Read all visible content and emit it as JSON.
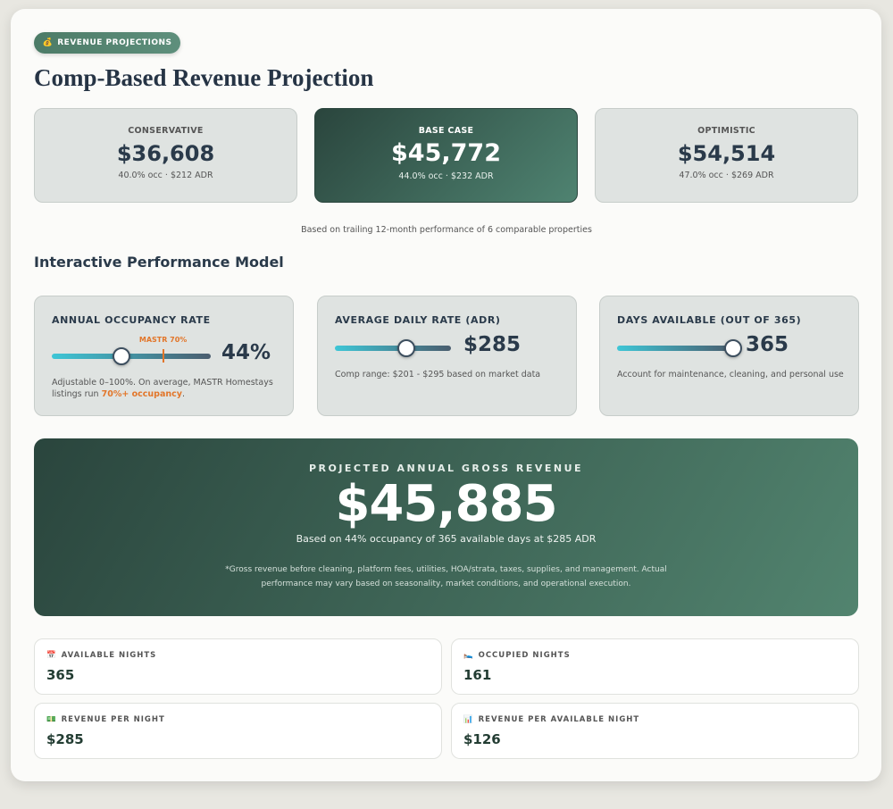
{
  "header": {
    "badge_icon": "💰",
    "badge": "REVENUE PROJECTIONS",
    "title": "Comp-Based Revenue Projection"
  },
  "scenarios": [
    {
      "label": "CONSERVATIVE",
      "value": "$36,608",
      "detail": "40.0% occ · $212 ADR"
    },
    {
      "label": "BASE CASE",
      "value": "$45,772",
      "detail": "44.0% occ · $232 ADR"
    },
    {
      "label": "OPTIMISTIC",
      "value": "$54,514",
      "detail": "47.0% occ · $269 ADR"
    }
  ],
  "scenario_note": "Based on trailing 12-month performance of 6 comparable properties",
  "model_title": "Interactive Performance Model",
  "sliders": [
    {
      "label": "ANNUAL OCCUPANCY RATE",
      "value": 44,
      "value_label": "44%",
      "min": 0,
      "max": 100,
      "marker": {
        "value": 70,
        "label": "MASTR 70%"
      },
      "description": "Adjustable 0–100%. On average, MASTR Homestays listings run ",
      "highlight": "70%+ occupancy",
      "description_end": "."
    },
    {
      "label": "AVERAGE DAILY RATE (ADR)",
      "value": 285,
      "value_label": "$285",
      "min": 100,
      "max": 400,
      "description": "Comp range: $201 - $295 based on market data"
    },
    {
      "label": "DAYS AVAILABLE (OUT OF 365)",
      "value": 365,
      "min": 0,
      "max": 365,
      "description": "Account for maintenance, cleaning, and personal use"
    }
  ],
  "result": {
    "label": "PROJECTED ANNUAL GROSS REVENUE",
    "value": "$45,885",
    "basis": "Based on 44% occupancy of 365 available days at $285 ADR",
    "disclaimer": "*Gross revenue before cleaning, platform fees, utilities, HOA/strata, taxes, supplies, and management. Actual performance may vary based on seasonality, market conditions, and operational execution."
  },
  "stats": [
    {
      "icon": "📅",
      "label": "AVAILABLE NIGHTS",
      "value": "365"
    },
    {
      "icon": "🛌",
      "label": "OCCUPIED NIGHTS",
      "value": "161"
    },
    {
      "icon": "💵",
      "label": "REVENUE PER NIGHT",
      "value": "$285"
    },
    {
      "icon": "📊",
      "label": "REVENUE PER AVAILABLE NIGHT",
      "value": "$126"
    }
  ]
}
